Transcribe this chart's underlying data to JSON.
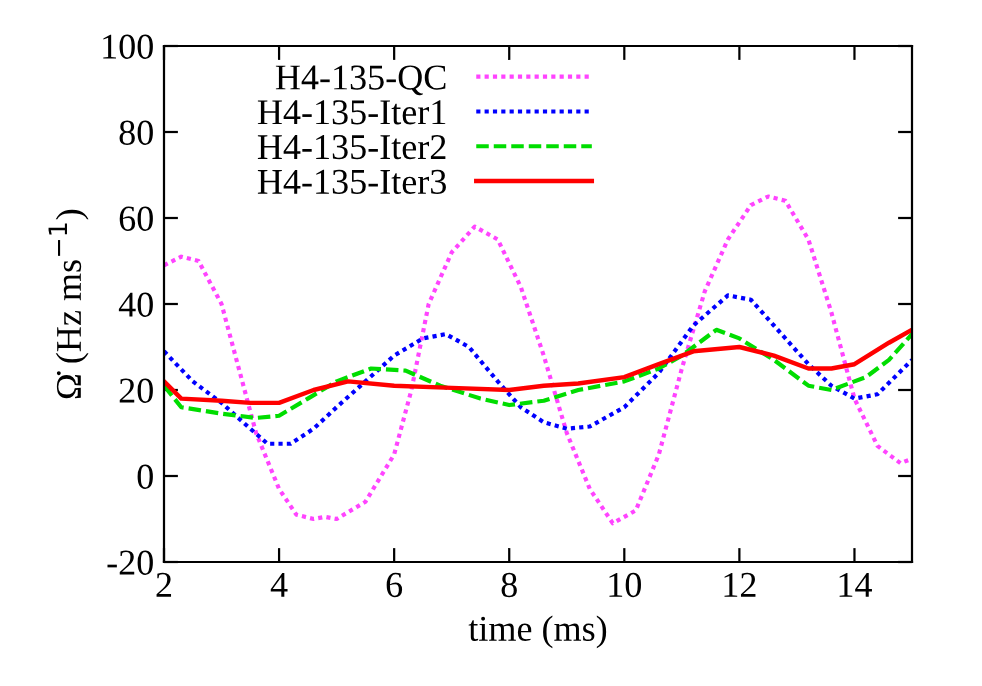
{
  "chart_data": {
    "type": "line",
    "xlabel": "time (ms)",
    "ylabel": "Ω̇ (Hz ms$^{−1}$)",
    "xlim": [
      2,
      15
    ],
    "xticks": [
      2,
      4,
      6,
      8,
      10,
      12,
      14
    ],
    "ylim": [
      -20,
      100
    ],
    "yticks": [
      -20,
      0,
      20,
      40,
      60,
      80,
      100
    ],
    "grid": false,
    "legend": "top left",
    "series": [
      {
        "name": "H4-135-QC",
        "color": "#ff44ff",
        "line_style": "dotted",
        "x": [
          2,
          2.3,
          2.6,
          3,
          3.3,
          3.6,
          4,
          4.3,
          4.6,
          4.8,
          5,
          5.5,
          6,
          6.3,
          6.6,
          7,
          7.4,
          7.8,
          8.2,
          8.6,
          9,
          9.4,
          9.8,
          10.2,
          10.6,
          11,
          11.4,
          11.8,
          12.2,
          12.5,
          12.8,
          13.2,
          13.6,
          14,
          14.4,
          14.8,
          15
        ],
        "values": [
          49,
          51,
          50,
          40,
          25,
          10,
          -3,
          -9,
          -10,
          -9.5,
          -10,
          -6,
          5,
          20,
          40,
          52,
          58,
          55,
          44,
          28,
          10,
          -3,
          -11,
          -8,
          5,
          25,
          43,
          55,
          63,
          65,
          64,
          55,
          38,
          18,
          7,
          3,
          4
        ]
      },
      {
        "name": "H4-135-Iter1",
        "color": "#0000ff",
        "line_style": "dotted",
        "x": [
          2,
          2.5,
          3,
          3.5,
          3.8,
          4.2,
          4.6,
          5,
          5.5,
          6,
          6.5,
          6.9,
          7.3,
          7.8,
          8.2,
          8.6,
          9,
          9.4,
          10,
          10.6,
          11.2,
          11.8,
          12.2,
          12.6,
          13.2,
          13.6,
          14,
          14.4,
          15
        ],
        "values": [
          29,
          22,
          17,
          11,
          7.5,
          7.5,
          11,
          16,
          22,
          28,
          32,
          33,
          30,
          22,
          16,
          12.5,
          11,
          11.5,
          16,
          24,
          35,
          42,
          41,
          35,
          26,
          21,
          18,
          19,
          27
        ]
      },
      {
        "name": "H4-135-Iter2",
        "color": "#00dd00",
        "line_style": "dashed",
        "x": [
          2,
          2.3,
          3,
          3.6,
          4,
          4.5,
          5,
          5.6,
          6.2,
          6.8,
          7.5,
          8,
          8.6,
          9.2,
          10,
          10.6,
          11,
          11.6,
          12,
          12.6,
          13.2,
          13.6,
          14.2,
          14.6,
          15
        ],
        "values": [
          21,
          16,
          14.5,
          13.5,
          14,
          18,
          22,
          25,
          24.5,
          21,
          18,
          16.5,
          17.5,
          20,
          22,
          25,
          28,
          34,
          32,
          27,
          21,
          20,
          23,
          27,
          33
        ]
      },
      {
        "name": "H4-135-Iter3",
        "color": "#ff0000",
        "line_style": "solid",
        "x": [
          2,
          2.3,
          3,
          3.5,
          4,
          4.6,
          5.2,
          6,
          7,
          8,
          8.6,
          9.2,
          10,
          10.6,
          11.2,
          12,
          12.6,
          13.2,
          13.6,
          14,
          14.6,
          15
        ],
        "values": [
          22,
          18,
          17.5,
          17,
          17,
          20,
          22,
          21,
          20.5,
          20,
          21,
          21.5,
          23,
          26,
          29,
          30,
          28,
          25,
          25,
          26,
          31,
          34
        ]
      }
    ]
  }
}
